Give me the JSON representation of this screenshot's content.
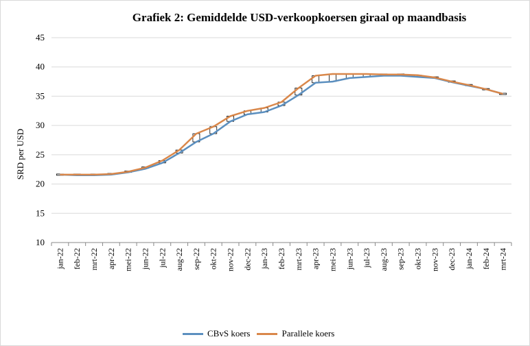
{
  "chart_data": {
    "type": "line",
    "title": "Grafiek 2: Gemiddelde USD-verkoopkoersen giraal op maandbasis",
    "ylabel": "SRD per USD",
    "xlabel": "",
    "ylim": [
      10,
      45
    ],
    "yticks": [
      10,
      15,
      20,
      25,
      30,
      35,
      40,
      45
    ],
    "grid": true,
    "legend_position": "bottom",
    "categories": [
      "jan-22",
      "feb-22",
      "mrt-22",
      "apr-22",
      "mei-22",
      "jun-22",
      "jul-22",
      "aug-22",
      "sep-22",
      "okt-22",
      "nov-22",
      "dec-22",
      "jan-23",
      "feb-23",
      "mrt-23",
      "apr-23",
      "mei-23",
      "jun-23",
      "jul-23",
      "aug-23",
      "sep-23",
      "okt-23",
      "nov-23",
      "dec-23",
      "jan-24",
      "feb-24",
      "mrt-24"
    ],
    "series": [
      {
        "name": "CBvS koers",
        "color": "#5b8fbf",
        "values": [
          21.6,
          21.5,
          21.5,
          21.6,
          22.0,
          22.6,
          23.6,
          25.3,
          27.2,
          28.6,
          30.7,
          31.9,
          32.3,
          33.4,
          35.2,
          37.3,
          37.5,
          38.1,
          38.3,
          38.5,
          38.5,
          38.3,
          38.1,
          37.4,
          36.8,
          36.2,
          35.4
        ]
      },
      {
        "name": "Parallele koers",
        "color": "#d9874a",
        "values": [
          21.6,
          21.6,
          21.6,
          21.7,
          22.1,
          22.8,
          24.0,
          25.8,
          28.6,
          29.8,
          31.6,
          32.5,
          33.0,
          34.0,
          36.4,
          38.5,
          38.8,
          38.8,
          38.8,
          38.7,
          38.7,
          38.6,
          38.2,
          37.5,
          36.9,
          36.2,
          35.4
        ]
      }
    ]
  }
}
